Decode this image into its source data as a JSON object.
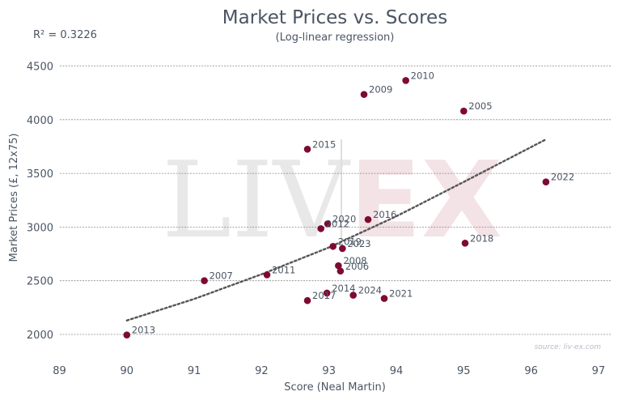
{
  "chart_data": {
    "type": "scatter",
    "title": "Market Prices vs. Scores",
    "subtitle": "(Log-linear regression)",
    "annotation": "R² = 0.3226",
    "xlabel": "Score (Neal Martin)",
    "ylabel": "Market Prices (£, 12x75)",
    "xlim": [
      89,
      97
    ],
    "ylim": [
      1800,
      4650
    ],
    "xticks": [
      "89",
      "90",
      "91",
      "92",
      "93",
      "94",
      "95",
      "96",
      "97"
    ],
    "yticks": [
      "2000",
      "2500",
      "3000",
      "3500",
      "4000",
      "4500"
    ],
    "grid": "horizontal-dashed",
    "source": "source: liv-ex.com",
    "watermark": "LIV-EX",
    "colors": {
      "point": "#7d0b31",
      "trend": "#555555",
      "text": "#4a5563"
    },
    "points": [
      {
        "label": "2013",
        "x": 90.0,
        "y": 1995
      },
      {
        "label": "2007",
        "x": 91.15,
        "y": 2500
      },
      {
        "label": "2011",
        "x": 92.08,
        "y": 2555
      },
      {
        "label": "2017",
        "x": 92.68,
        "y": 2315
      },
      {
        "label": "2015",
        "x": 92.68,
        "y": 3725
      },
      {
        "label": "2012",
        "x": 92.88,
        "y": 2985
      },
      {
        "label": "2020",
        "x": 92.98,
        "y": 3030
      },
      {
        "label": "2014",
        "x": 92.97,
        "y": 2385
      },
      {
        "label": "2019",
        "x": 93.06,
        "y": 2820
      },
      {
        "label": "2023",
        "x": 93.2,
        "y": 2800
      },
      {
        "label": "2008",
        "x": 93.14,
        "y": 2640
      },
      {
        "label": "2006",
        "x": 93.17,
        "y": 2590
      },
      {
        "label": "2024",
        "x": 93.36,
        "y": 2365
      },
      {
        "label": "2016",
        "x": 93.58,
        "y": 3070
      },
      {
        "label": "2009",
        "x": 93.52,
        "y": 4235
      },
      {
        "label": "2010",
        "x": 94.14,
        "y": 4365
      },
      {
        "label": "2021",
        "x": 93.82,
        "y": 2335
      },
      {
        "label": "2005",
        "x": 95.0,
        "y": 4080
      },
      {
        "label": "2018",
        "x": 95.02,
        "y": 2850
      },
      {
        "label": "2022",
        "x": 96.22,
        "y": 3420
      }
    ],
    "trendline": [
      {
        "x": 90.0,
        "y": 2130
      },
      {
        "x": 91.0,
        "y": 2330
      },
      {
        "x": 92.0,
        "y": 2560
      },
      {
        "x": 93.0,
        "y": 2810
      },
      {
        "x": 94.0,
        "y": 3100
      },
      {
        "x": 95.0,
        "y": 3420
      },
      {
        "x": 96.2,
        "y": 3810
      }
    ]
  }
}
